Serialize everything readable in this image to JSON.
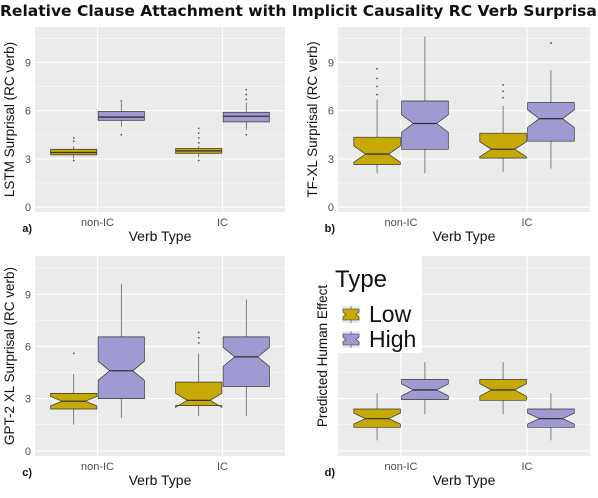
{
  "title": "Relative Clause Attachment with Implicit Causality RC Verb Surprisal",
  "colors": {
    "low": "#c6a905",
    "high": "#a09ad2",
    "panel_bg": "#ebebeb",
    "grid": "#ffffff",
    "outline": "#333333"
  },
  "legend": {
    "title": "Type",
    "items": [
      "Low",
      "High"
    ]
  },
  "chart_data": [
    {
      "type": "boxplot",
      "tag": "a)",
      "xlabel": "Verb Type",
      "ylabel": "LSTM Surprisal (RC verb)",
      "categories": [
        "non-IC",
        "IC"
      ],
      "yticks": [
        0,
        3,
        6,
        9
      ],
      "ylim": [
        -0.3,
        11.2
      ],
      "notched": false,
      "grid": true,
      "legend": "none",
      "series": [
        {
          "name": "Low",
          "boxes": [
            {
              "min": 3.0,
              "q1": 3.25,
              "median": 3.4,
              "q3": 3.6,
              "max": 3.8,
              "outliers": [
                2.9,
                4.1,
                4.3
              ]
            },
            {
              "min": 3.1,
              "q1": 3.35,
              "median": 3.5,
              "q3": 3.65,
              "max": 3.8,
              "outliers": [
                2.9,
                4.0,
                4.3,
                4.6,
                4.9
              ]
            }
          ]
        },
        {
          "name": "High",
          "boxes": [
            {
              "min": 5.0,
              "q1": 5.4,
              "median": 5.6,
              "q3": 5.95,
              "max": 6.5,
              "outliers": [
                4.5,
                6.6
              ]
            },
            {
              "min": 4.8,
              "q1": 5.3,
              "median": 5.65,
              "q3": 5.9,
              "max": 6.5,
              "outliers": [
                4.5,
                6.7,
                7.0,
                7.3
              ]
            }
          ]
        }
      ]
    },
    {
      "type": "boxplot",
      "tag": "b)",
      "xlabel": "Verb Type",
      "ylabel": "TF-XL Surprisal (RC verb)",
      "categories": [
        "non-IC",
        "IC"
      ],
      "yticks": [
        0,
        3,
        6,
        9
      ],
      "ylim": [
        -0.3,
        11.2
      ],
      "notched": true,
      "grid": true,
      "legend": "none",
      "series": [
        {
          "name": "Low",
          "boxes": [
            {
              "min": 2.1,
              "q1": 2.65,
              "median": 3.3,
              "q3": 4.35,
              "max": 6.7,
              "outliers": [
                7.0,
                7.5,
                8.0,
                8.6
              ]
            },
            {
              "min": 2.2,
              "q1": 3.05,
              "median": 3.6,
              "q3": 4.6,
              "max": 6.3,
              "outliers": [
                6.8,
                7.2,
                7.6
              ]
            }
          ]
        },
        {
          "name": "High",
          "boxes": [
            {
              "min": 2.1,
              "q1": 3.6,
              "median": 5.2,
              "q3": 6.6,
              "max": 10.6,
              "outliers": []
            },
            {
              "min": 2.4,
              "q1": 4.1,
              "median": 5.5,
              "q3": 6.5,
              "max": 8.5,
              "outliers": [
                10.2
              ]
            }
          ]
        }
      ]
    },
    {
      "type": "boxplot",
      "tag": "c)",
      "xlabel": "Verb Type",
      "ylabel": "GPT-2 XL Surprisal (RC verb)",
      "categories": [
        "non-IC",
        "IC"
      ],
      "yticks": [
        0,
        3,
        6,
        9
      ],
      "ylim": [
        -0.3,
        11.2
      ],
      "notched": true,
      "grid": true,
      "legend": "none",
      "series": [
        {
          "name": "Low",
          "boxes": [
            {
              "min": 1.5,
              "q1": 2.4,
              "median": 2.85,
              "q3": 3.3,
              "max": 4.4,
              "outliers": [
                5.6
              ]
            },
            {
              "min": 2.0,
              "q1": 2.6,
              "median": 2.9,
              "q3": 3.95,
              "max": 5.6,
              "outliers": [
                6.2,
                6.5,
                6.8
              ]
            }
          ]
        },
        {
          "name": "High",
          "boxes": [
            {
              "min": 1.9,
              "q1": 3.0,
              "median": 4.6,
              "q3": 6.55,
              "max": 9.6,
              "outliers": []
            },
            {
              "min": 2.0,
              "q1": 3.7,
              "median": 5.4,
              "q3": 6.55,
              "max": 8.7,
              "outliers": []
            }
          ]
        }
      ]
    },
    {
      "type": "boxplot",
      "tag": "d)",
      "xlabel": "Verb Type",
      "ylabel": "Predicted Human Effect",
      "categories": [
        "non-IC",
        "IC"
      ],
      "yticks": [],
      "ylim": [
        -0.3,
        11.2
      ],
      "notched": true,
      "grid": true,
      "legend": "top-left",
      "series": [
        {
          "name": "Low",
          "boxes": [
            {
              "min": 0.6,
              "q1": 1.35,
              "median": 1.85,
              "q3": 2.4,
              "max": 3.3,
              "outliers": []
            },
            {
              "min": 2.1,
              "q1": 2.9,
              "median": 3.5,
              "q3": 4.1,
              "max": 5.1,
              "outliers": []
            }
          ]
        },
        {
          "name": "High",
          "boxes": [
            {
              "min": 2.1,
              "q1": 2.95,
              "median": 3.5,
              "q3": 4.1,
              "max": 5.1,
              "outliers": []
            },
            {
              "min": 0.6,
              "q1": 1.35,
              "median": 1.85,
              "q3": 2.4,
              "max": 3.3,
              "outliers": []
            }
          ]
        }
      ]
    }
  ]
}
